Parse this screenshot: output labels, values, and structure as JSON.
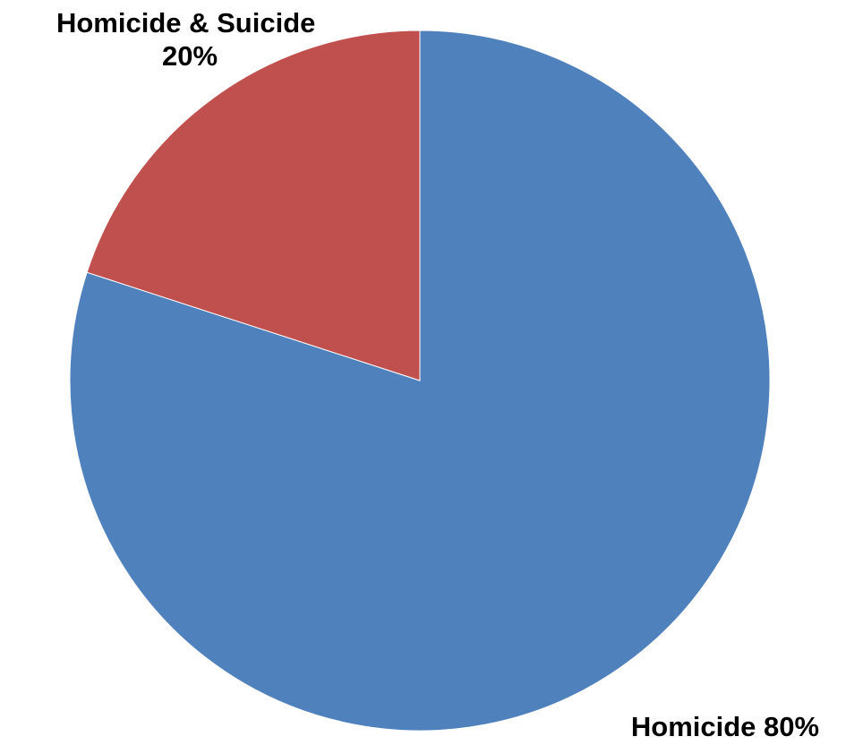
{
  "chart_data": {
    "type": "pie",
    "slices": [
      {
        "label": "Homicide",
        "value": 80,
        "percent_label": "80%",
        "color": "#4F81BD",
        "data_label_lines": [
          "Homicide 80%"
        ]
      },
      {
        "label": "Homicide & Suicide",
        "value": 20,
        "percent_label": "20%",
        "color": "#C0504D",
        "data_label_lines": [
          "Homicide & Suicide",
          "20%"
        ]
      }
    ],
    "start_angle_deg": 0,
    "direction": "clockwise",
    "legend": "none"
  }
}
